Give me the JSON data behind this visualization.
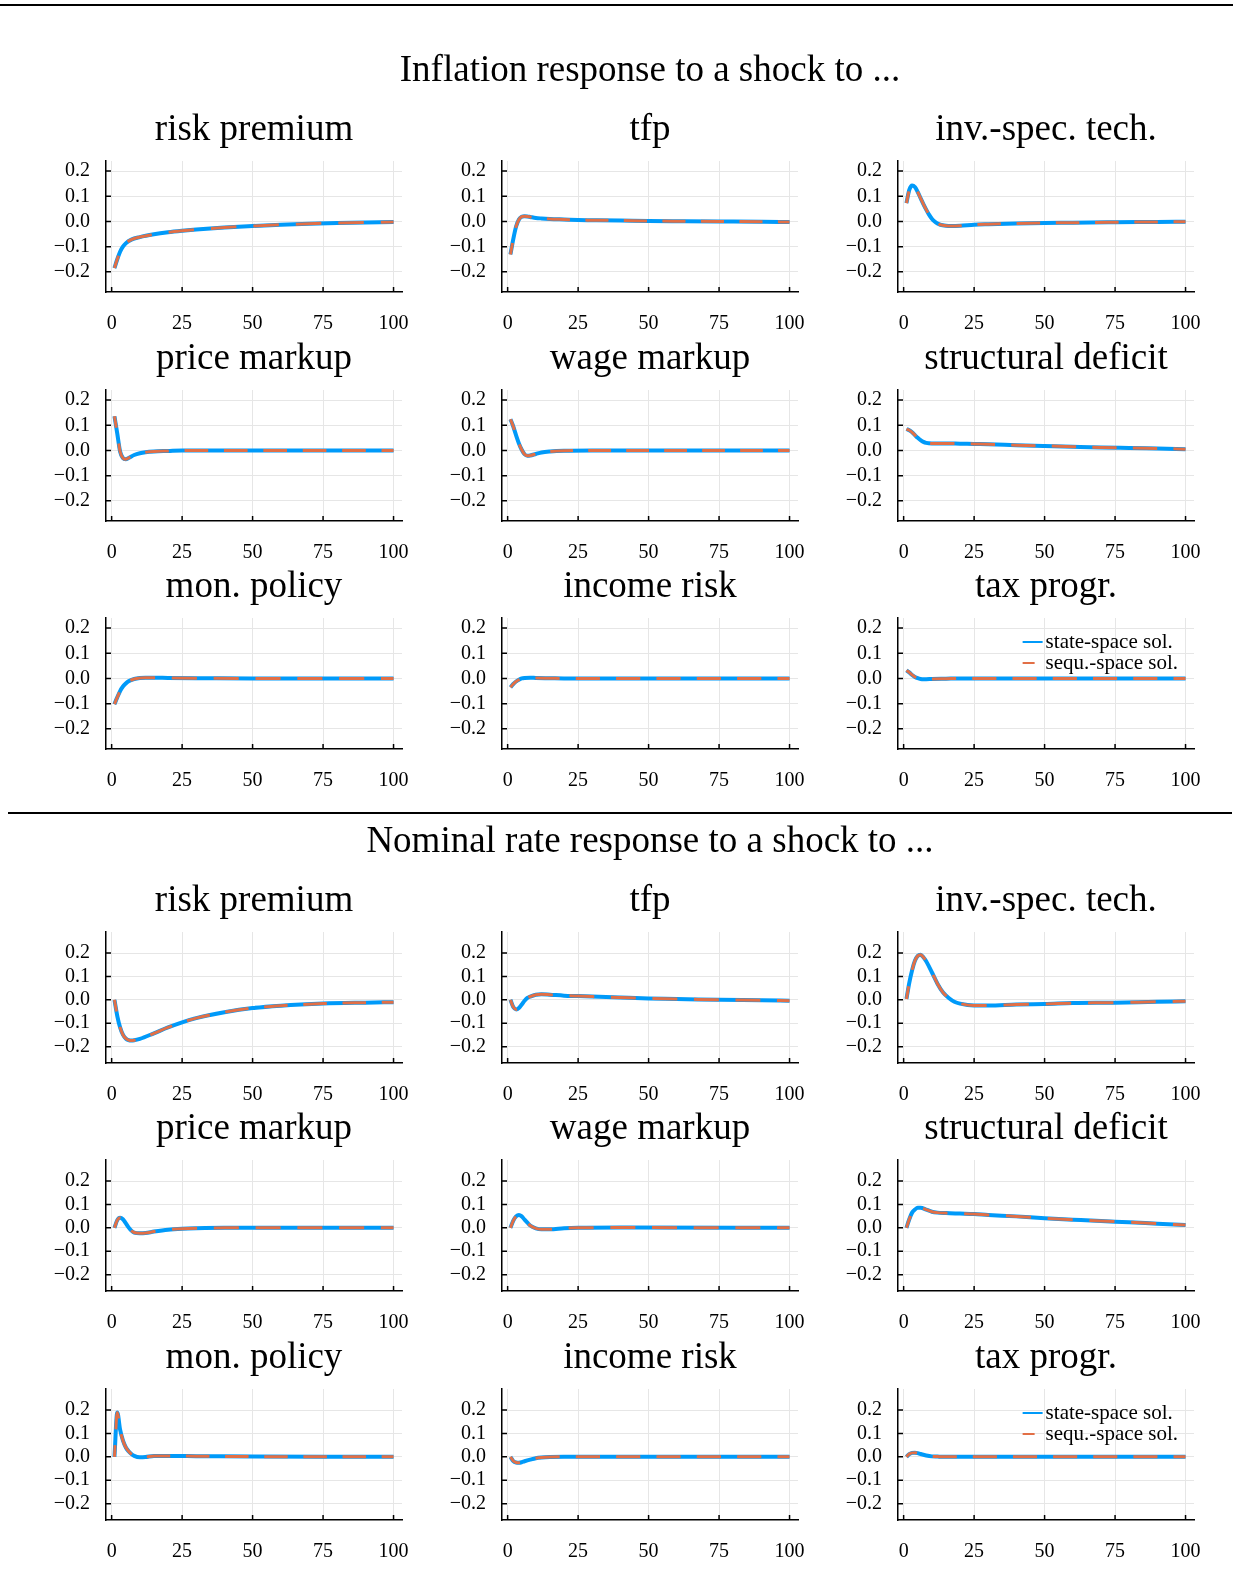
{
  "chart_data": [
    {
      "type": "other",
      "title": "Inflation response to a shock to ..."
    },
    {
      "type": "line",
      "title": "risk premium",
      "x": [
        1,
        2,
        3,
        4,
        5,
        7,
        10,
        15,
        20,
        25,
        30,
        40,
        50,
        60,
        70,
        80,
        90,
        100
      ],
      "series": [
        {
          "color": "#009af9",
          "line_style": "solid",
          "values": [
            -0.185,
            -0.15,
            -0.12,
            -0.1,
            -0.087,
            -0.072,
            -0.062,
            -0.051,
            -0.043,
            -0.037,
            -0.032,
            -0.024,
            -0.018,
            -0.013,
            -0.009,
            -0.006,
            -0.004,
            -0.002
          ]
        },
        {
          "color": "#e26f46",
          "line_style": "dashed",
          "values": [
            -0.185,
            -0.15,
            -0.12,
            -0.1,
            -0.087,
            -0.072,
            -0.062,
            -0.051,
            -0.043,
            -0.037,
            -0.032,
            -0.024,
            -0.018,
            -0.013,
            -0.009,
            -0.006,
            -0.004,
            -0.002
          ]
        }
      ],
      "xlim": [
        -2,
        103
      ],
      "xticks": [
        0,
        25,
        50,
        75,
        100
      ],
      "ylim": [
        -0.28,
        0.24
      ],
      "yticks": [
        {
          "value": -0.2,
          "label": "−0.2"
        },
        {
          "value": -0.1,
          "label": "−0.1"
        },
        {
          "value": 0,
          "label": "0.0"
        },
        {
          "value": 0.1,
          "label": "0.1"
        },
        {
          "value": 0.2,
          "label": "0.2"
        }
      ],
      "grid": true
    },
    {
      "type": "line",
      "title": "tfp",
      "x": [
        1,
        2,
        3,
        4,
        5,
        6,
        7,
        8,
        10,
        12,
        15,
        20,
        25,
        30,
        40,
        50,
        60,
        75,
        90,
        100
      ],
      "series": [
        {
          "color": "#009af9",
          "line_style": "solid",
          "values": [
            -0.131,
            -0.07,
            -0.02,
            0.008,
            0.019,
            0.021,
            0.02,
            0.018,
            0.014,
            0.012,
            0.01,
            0.008,
            0.006,
            0.005,
            0.004,
            0.002,
            0.001,
            0,
            -0.001,
            -0.002
          ]
        },
        {
          "color": "#e26f46",
          "line_style": "dashed",
          "values": [
            -0.131,
            -0.07,
            -0.02,
            0.008,
            0.019,
            0.021,
            0.02,
            0.018,
            0.014,
            0.012,
            0.01,
            0.008,
            0.006,
            0.005,
            0.004,
            0.002,
            0.001,
            0,
            -0.001,
            -0.002
          ]
        }
      ],
      "xlim": [
        -2,
        103
      ],
      "xticks": [
        0,
        25,
        50,
        75,
        100
      ],
      "ylim": [
        -0.28,
        0.24
      ],
      "yticks": [
        {
          "value": -0.2,
          "label": "−0.2"
        },
        {
          "value": -0.1,
          "label": "−0.1"
        },
        {
          "value": 0,
          "label": "0.0"
        },
        {
          "value": 0.1,
          "label": "0.1"
        },
        {
          "value": 0.2,
          "label": "0.2"
        }
      ],
      "grid": true
    },
    {
      "type": "line",
      "title": "inv.-spec. tech.",
      "x": [
        1,
        2,
        3,
        4,
        5,
        6,
        7,
        8,
        9,
        10,
        11,
        12,
        13,
        15,
        17,
        20,
        25,
        30,
        40,
        50,
        60,
        75,
        90,
        100
      ],
      "series": [
        {
          "color": "#009af9",
          "line_style": "solid",
          "values": [
            0.073,
            0.125,
            0.143,
            0.137,
            0.117,
            0.093,
            0.069,
            0.047,
            0.027,
            0.011,
            0,
            -0.008,
            -0.013,
            -0.017,
            -0.018,
            -0.017,
            -0.013,
            -0.011,
            -0.008,
            -0.006,
            -0.005,
            -0.003,
            -0.002,
            -0.001
          ]
        },
        {
          "color": "#e26f46",
          "line_style": "dashed",
          "values": [
            0.073,
            0.125,
            0.143,
            0.137,
            0.117,
            0.093,
            0.069,
            0.047,
            0.027,
            0.011,
            0,
            -0.008,
            -0.013,
            -0.017,
            -0.018,
            -0.017,
            -0.013,
            -0.011,
            -0.008,
            -0.006,
            -0.005,
            -0.003,
            -0.002,
            -0.001
          ]
        }
      ],
      "xlim": [
        -2,
        103
      ],
      "xticks": [
        0,
        25,
        50,
        75,
        100
      ],
      "ylim": [
        -0.28,
        0.24
      ],
      "yticks": [
        {
          "value": -0.2,
          "label": "−0.2"
        },
        {
          "value": -0.1,
          "label": "−0.1"
        },
        {
          "value": 0,
          "label": "0.0"
        },
        {
          "value": 0.1,
          "label": "0.1"
        },
        {
          "value": 0.2,
          "label": "0.2"
        }
      ],
      "grid": true
    },
    {
      "type": "line",
      "title": "price markup",
      "x": [
        1,
        2,
        3,
        4,
        5,
        6,
        8,
        10,
        12,
        15,
        20,
        25,
        50,
        75,
        100
      ],
      "series": [
        {
          "color": "#009af9",
          "line_style": "solid",
          "values": [
            0.136,
            0.067,
            -0.004,
            -0.03,
            -0.035,
            -0.03,
            -0.018,
            -0.011,
            -0.007,
            -0.004,
            -0.002,
            0,
            0,
            0,
            0
          ]
        },
        {
          "color": "#e26f46",
          "line_style": "dashed",
          "values": [
            0.136,
            0.067,
            -0.004,
            -0.03,
            -0.035,
            -0.03,
            -0.018,
            -0.011,
            -0.007,
            -0.004,
            -0.002,
            0,
            0,
            0,
            0
          ]
        }
      ],
      "xlim": [
        -2,
        103
      ],
      "xticks": [
        0,
        25,
        50,
        75,
        100
      ],
      "ylim": [
        -0.28,
        0.24
      ],
      "yticks": [
        {
          "value": -0.2,
          "label": "−0.2"
        },
        {
          "value": -0.1,
          "label": "−0.1"
        },
        {
          "value": 0,
          "label": "0.0"
        },
        {
          "value": 0.1,
          "label": "0.1"
        },
        {
          "value": 0.2,
          "label": "0.2"
        }
      ],
      "grid": true
    },
    {
      "type": "line",
      "title": "wage markup",
      "x": [
        1,
        2,
        3,
        4,
        5,
        6,
        7,
        8,
        10,
        12,
        15,
        20,
        30,
        50,
        75,
        100
      ],
      "series": [
        {
          "color": "#009af9",
          "line_style": "solid",
          "values": [
            0.124,
            0.095,
            0.06,
            0.028,
            0.003,
            -0.015,
            -0.021,
            -0.02,
            -0.014,
            -0.008,
            -0.004,
            -0.001,
            0,
            0,
            0,
            0
          ]
        },
        {
          "color": "#e26f46",
          "line_style": "dashed",
          "values": [
            0.124,
            0.095,
            0.06,
            0.028,
            0.003,
            -0.015,
            -0.021,
            -0.02,
            -0.014,
            -0.008,
            -0.004,
            -0.001,
            0,
            0,
            0,
            0
          ]
        }
      ],
      "xlim": [
        -2,
        103
      ],
      "xticks": [
        0,
        25,
        50,
        75,
        100
      ],
      "ylim": [
        -0.28,
        0.24
      ],
      "yticks": [
        {
          "value": -0.2,
          "label": "−0.2"
        },
        {
          "value": -0.1,
          "label": "−0.1"
        },
        {
          "value": 0,
          "label": "0.0"
        },
        {
          "value": 0.1,
          "label": "0.1"
        },
        {
          "value": 0.2,
          "label": "0.2"
        }
      ],
      "grid": true
    },
    {
      "type": "line",
      "title": "structural deficit",
      "x": [
        1,
        2,
        3,
        4,
        5,
        6,
        7,
        8,
        10,
        15,
        20,
        25,
        30,
        40,
        50,
        60,
        70,
        80,
        90,
        100
      ],
      "series": [
        {
          "color": "#009af9",
          "line_style": "solid",
          "values": [
            0.085,
            0.08,
            0.072,
            0.061,
            0.05,
            0.041,
            0.034,
            0.03,
            0.028,
            0.028,
            0.027,
            0.026,
            0.025,
            0.021,
            0.018,
            0.015,
            0.012,
            0.01,
            0.008,
            0.005
          ]
        },
        {
          "color": "#e26f46",
          "line_style": "dashed",
          "values": [
            0.085,
            0.08,
            0.072,
            0.061,
            0.05,
            0.041,
            0.034,
            0.03,
            0.028,
            0.028,
            0.027,
            0.026,
            0.025,
            0.021,
            0.018,
            0.015,
            0.012,
            0.01,
            0.008,
            0.005
          ]
        }
      ],
      "xlim": [
        -2,
        103
      ],
      "xticks": [
        0,
        25,
        50,
        75,
        100
      ],
      "ylim": [
        -0.28,
        0.24
      ],
      "yticks": [
        {
          "value": -0.2,
          "label": "−0.2"
        },
        {
          "value": -0.1,
          "label": "−0.1"
        },
        {
          "value": 0,
          "label": "0.0"
        },
        {
          "value": 0.1,
          "label": "0.1"
        },
        {
          "value": 0.2,
          "label": "0.2"
        }
      ],
      "grid": true
    },
    {
      "type": "line",
      "title": "mon. policy",
      "x": [
        1,
        2,
        3,
        4,
        5,
        6,
        8,
        10,
        12,
        15,
        20,
        30,
        50,
        75,
        100
      ],
      "series": [
        {
          "color": "#009af9",
          "line_style": "solid",
          "values": [
            -0.102,
            -0.075,
            -0.05,
            -0.032,
            -0.02,
            -0.011,
            -0.002,
            0.002,
            0.003,
            0.003,
            0.002,
            0.001,
            0,
            0,
            0
          ]
        },
        {
          "color": "#e26f46",
          "line_style": "dashed",
          "values": [
            -0.102,
            -0.075,
            -0.05,
            -0.032,
            -0.02,
            -0.011,
            -0.002,
            0.002,
            0.003,
            0.003,
            0.002,
            0.001,
            0,
            0,
            0
          ]
        }
      ],
      "xlim": [
        -2,
        103
      ],
      "xticks": [
        0,
        25,
        50,
        75,
        100
      ],
      "ylim": [
        -0.28,
        0.24
      ],
      "yticks": [
        {
          "value": -0.2,
          "label": "−0.2"
        },
        {
          "value": -0.1,
          "label": "−0.1"
        },
        {
          "value": 0,
          "label": "0.0"
        },
        {
          "value": 0.1,
          "label": "0.1"
        },
        {
          "value": 0.2,
          "label": "0.2"
        }
      ],
      "grid": true
    },
    {
      "type": "line",
      "title": "income risk",
      "x": [
        1,
        2,
        3,
        4,
        5,
        6,
        8,
        10,
        15,
        20,
        50,
        75,
        100
      ],
      "series": [
        {
          "color": "#009af9",
          "line_style": "solid",
          "values": [
            -0.035,
            -0.022,
            -0.012,
            -0.005,
            0,
            0.002,
            0.003,
            0.002,
            0.001,
            0,
            0,
            0,
            0
          ]
        },
        {
          "color": "#e26f46",
          "line_style": "dashed",
          "values": [
            -0.035,
            -0.022,
            -0.012,
            -0.005,
            0,
            0.002,
            0.003,
            0.002,
            0.001,
            0,
            0,
            0,
            0
          ]
        }
      ],
      "xlim": [
        -2,
        103
      ],
      "xticks": [
        0,
        25,
        50,
        75,
        100
      ],
      "ylim": [
        -0.28,
        0.24
      ],
      "yticks": [
        {
          "value": -0.2,
          "label": "−0.2"
        },
        {
          "value": -0.1,
          "label": "−0.1"
        },
        {
          "value": 0,
          "label": "0.0"
        },
        {
          "value": 0.1,
          "label": "0.1"
        },
        {
          "value": 0.2,
          "label": "0.2"
        }
      ],
      "grid": true
    },
    {
      "type": "line",
      "title": "tax progr.",
      "x": [
        1,
        2,
        3,
        4,
        5,
        6,
        7,
        8,
        10,
        15,
        20,
        50,
        75,
        100
      ],
      "series": [
        {
          "name": "state-space sol.",
          "color": "#009af9",
          "line_style": "solid",
          "values": [
            0.032,
            0.024,
            0.014,
            0.006,
            0.001,
            -0.002,
            -0.003,
            -0.003,
            -0.002,
            -0.001,
            0,
            0,
            0,
            0
          ]
        },
        {
          "name": "sequ.-space sol.",
          "color": "#e26f46",
          "line_style": "dashed",
          "values": [
            0.032,
            0.024,
            0.014,
            0.006,
            0.001,
            -0.002,
            -0.003,
            -0.003,
            -0.002,
            -0.001,
            0,
            0,
            0,
            0
          ]
        }
      ],
      "xlim": [
        -2,
        103
      ],
      "xticks": [
        0,
        25,
        50,
        75,
        100
      ],
      "ylim": [
        -0.28,
        0.24
      ],
      "yticks": [
        {
          "value": -0.2,
          "label": "−0.2"
        },
        {
          "value": -0.1,
          "label": "−0.1"
        },
        {
          "value": 0,
          "label": "0.0"
        },
        {
          "value": 0.1,
          "label": "0.1"
        },
        {
          "value": 0.2,
          "label": "0.2"
        }
      ],
      "grid": true,
      "legend": "top right"
    },
    {
      "type": "other",
      "title": "Nominal rate response to a shock to ..."
    },
    {
      "type": "line",
      "title": "risk premium",
      "x": [
        1,
        2,
        3,
        4,
        5,
        6,
        7,
        8,
        10,
        15,
        20,
        25,
        30,
        40,
        50,
        60,
        75,
        90,
        100
      ],
      "series": [
        {
          "color": "#009af9",
          "line_style": "solid",
          "values": [
            0,
            -0.069,
            -0.118,
            -0.149,
            -0.165,
            -0.172,
            -0.174,
            -0.173,
            -0.167,
            -0.143,
            -0.118,
            -0.096,
            -0.078,
            -0.053,
            -0.035,
            -0.025,
            -0.016,
            -0.012,
            -0.01
          ]
        },
        {
          "color": "#e26f46",
          "line_style": "dashed",
          "values": [
            0,
            -0.069,
            -0.118,
            -0.149,
            -0.165,
            -0.172,
            -0.174,
            -0.173,
            -0.167,
            -0.143,
            -0.118,
            -0.096,
            -0.078,
            -0.053,
            -0.035,
            -0.025,
            -0.016,
            -0.012,
            -0.01
          ]
        }
      ],
      "xlim": [
        -2,
        103
      ],
      "xticks": [
        0,
        25,
        50,
        75,
        100
      ],
      "ylim": [
        -0.27,
        0.29
      ],
      "yticks": [
        {
          "value": -0.2,
          "label": "−0.2"
        },
        {
          "value": -0.1,
          "label": "−0.1"
        },
        {
          "value": 0,
          "label": "0.0"
        },
        {
          "value": 0.1,
          "label": "0.1"
        },
        {
          "value": 0.2,
          "label": "0.2"
        }
      ],
      "grid": true
    },
    {
      "type": "line",
      "title": "tfp",
      "x": [
        1,
        2,
        3,
        4,
        5,
        6,
        7,
        8,
        10,
        12,
        15,
        20,
        25,
        30,
        40,
        50,
        60,
        75,
        90,
        100
      ],
      "series": [
        {
          "color": "#009af9",
          "line_style": "solid",
          "values": [
            0,
            -0.031,
            -0.041,
            -0.035,
            -0.02,
            -0.004,
            0.008,
            0.014,
            0.022,
            0.024,
            0.022,
            0.018,
            0.016,
            0.014,
            0.01,
            0.006,
            0.004,
            0,
            -0.002,
            -0.004
          ]
        },
        {
          "color": "#e26f46",
          "line_style": "dashed",
          "values": [
            0,
            -0.031,
            -0.041,
            -0.035,
            -0.02,
            -0.004,
            0.008,
            0.014,
            0.022,
            0.024,
            0.022,
            0.018,
            0.016,
            0.014,
            0.01,
            0.006,
            0.004,
            0,
            -0.002,
            -0.004
          ]
        }
      ],
      "xlim": [
        -2,
        103
      ],
      "xticks": [
        0,
        25,
        50,
        75,
        100
      ],
      "ylim": [
        -0.27,
        0.29
      ],
      "yticks": [
        {
          "value": -0.2,
          "label": "−0.2"
        },
        {
          "value": -0.1,
          "label": "−0.1"
        },
        {
          "value": 0,
          "label": "0.0"
        },
        {
          "value": 0.1,
          "label": "0.1"
        },
        {
          "value": 0.2,
          "label": "0.2"
        }
      ],
      "grid": true
    },
    {
      "type": "line",
      "title": "inv.-spec. tech.",
      "x": [
        1,
        2,
        3,
        4,
        5,
        6,
        7,
        8,
        10,
        12,
        14,
        16,
        18,
        20,
        25,
        30,
        40,
        50,
        60,
        75,
        90,
        100
      ],
      "series": [
        {
          "color": "#009af9",
          "line_style": "solid",
          "values": [
            0.004,
            0.073,
            0.127,
            0.167,
            0.188,
            0.193,
            0.182,
            0.165,
            0.118,
            0.069,
            0.031,
            0.008,
            -0.008,
            -0.016,
            -0.024,
            -0.024,
            -0.02,
            -0.018,
            -0.014,
            -0.012,
            -0.008,
            -0.006
          ]
        },
        {
          "color": "#e26f46",
          "line_style": "dashed",
          "values": [
            0.004,
            0.073,
            0.127,
            0.167,
            0.188,
            0.193,
            0.182,
            0.165,
            0.118,
            0.069,
            0.031,
            0.008,
            -0.008,
            -0.016,
            -0.024,
            -0.024,
            -0.02,
            -0.018,
            -0.014,
            -0.012,
            -0.008,
            -0.006
          ]
        }
      ],
      "xlim": [
        -2,
        103
      ],
      "xticks": [
        0,
        25,
        50,
        75,
        100
      ],
      "ylim": [
        -0.27,
        0.29
      ],
      "yticks": [
        {
          "value": -0.2,
          "label": "−0.2"
        },
        {
          "value": -0.1,
          "label": "−0.1"
        },
        {
          "value": 0,
          "label": "0.0"
        },
        {
          "value": 0.1,
          "label": "0.1"
        },
        {
          "value": 0.2,
          "label": "0.2"
        }
      ],
      "grid": true
    },
    {
      "type": "line",
      "title": "price markup",
      "x": [
        1,
        2,
        3,
        4,
        5,
        6,
        7,
        8,
        10,
        12,
        15,
        20,
        25,
        30,
        40,
        100
      ],
      "series": [
        {
          "color": "#009af9",
          "line_style": "solid",
          "values": [
            0,
            0.033,
            0.043,
            0.037,
            0.02,
            0.002,
            -0.012,
            -0.02,
            -0.023,
            -0.022,
            -0.016,
            -0.008,
            -0.004,
            -0.002,
            0,
            0
          ]
        },
        {
          "color": "#e26f46",
          "line_style": "dashed",
          "values": [
            0,
            0.033,
            0.043,
            0.037,
            0.02,
            0.002,
            -0.012,
            -0.02,
            -0.023,
            -0.022,
            -0.016,
            -0.008,
            -0.004,
            -0.002,
            0,
            0
          ]
        }
      ],
      "xlim": [
        -2,
        103
      ],
      "xticks": [
        0,
        25,
        50,
        75,
        100
      ],
      "ylim": [
        -0.27,
        0.29
      ],
      "yticks": [
        {
          "value": -0.2,
          "label": "−0.2"
        },
        {
          "value": -0.1,
          "label": "−0.1"
        },
        {
          "value": 0,
          "label": "0.0"
        },
        {
          "value": 0.1,
          "label": "0.1"
        },
        {
          "value": 0.2,
          "label": "0.2"
        }
      ],
      "grid": true
    },
    {
      "type": "line",
      "title": "wage markup",
      "x": [
        1,
        2,
        3,
        4,
        5,
        6,
        7,
        8,
        10,
        12,
        15,
        20,
        25,
        40,
        100
      ],
      "series": [
        {
          "color": "#009af9",
          "line_style": "solid",
          "values": [
            0,
            0.031,
            0.049,
            0.055,
            0.049,
            0.035,
            0.022,
            0.01,
            -0.002,
            -0.006,
            -0.006,
            -0.002,
            0,
            0.001,
            0
          ]
        },
        {
          "color": "#e26f46",
          "line_style": "dashed",
          "values": [
            0,
            0.031,
            0.049,
            0.055,
            0.049,
            0.035,
            0.022,
            0.01,
            -0.002,
            -0.006,
            -0.006,
            -0.002,
            0,
            0.001,
            0
          ]
        }
      ],
      "xlim": [
        -2,
        103
      ],
      "xticks": [
        0,
        25,
        50,
        75,
        100
      ],
      "ylim": [
        -0.27,
        0.29
      ],
      "yticks": [
        {
          "value": -0.2,
          "label": "−0.2"
        },
        {
          "value": -0.1,
          "label": "−0.1"
        },
        {
          "value": 0,
          "label": "0.0"
        },
        {
          "value": 0.1,
          "label": "0.1"
        },
        {
          "value": 0.2,
          "label": "0.2"
        }
      ],
      "grid": true
    },
    {
      "type": "line",
      "title": "structural deficit",
      "x": [
        1,
        2,
        3,
        4,
        5,
        6,
        8,
        10,
        12,
        15,
        20,
        25,
        30,
        40,
        50,
        60,
        70,
        80,
        90,
        100
      ],
      "series": [
        {
          "color": "#009af9",
          "line_style": "solid",
          "values": [
            0,
            0.037,
            0.065,
            0.078,
            0.086,
            0.086,
            0.078,
            0.069,
            0.065,
            0.063,
            0.061,
            0.059,
            0.055,
            0.049,
            0.041,
            0.035,
            0.029,
            0.024,
            0.018,
            0.012
          ]
        },
        {
          "color": "#e26f46",
          "line_style": "dashed",
          "values": [
            0,
            0.037,
            0.065,
            0.078,
            0.086,
            0.086,
            0.078,
            0.069,
            0.065,
            0.063,
            0.061,
            0.059,
            0.055,
            0.049,
            0.041,
            0.035,
            0.029,
            0.024,
            0.018,
            0.012
          ]
        }
      ],
      "xlim": [
        -2,
        103
      ],
      "xticks": [
        0,
        25,
        50,
        75,
        100
      ],
      "ylim": [
        -0.27,
        0.29
      ],
      "yticks": [
        {
          "value": -0.2,
          "label": "−0.2"
        },
        {
          "value": -0.1,
          "label": "−0.1"
        },
        {
          "value": 0,
          "label": "0.0"
        },
        {
          "value": 0.1,
          "label": "0.1"
        },
        {
          "value": 0.2,
          "label": "0.2"
        }
      ],
      "grid": true
    },
    {
      "type": "line",
      "title": "mon. policy",
      "x": [
        1,
        2,
        3,
        4,
        5,
        6,
        7,
        8,
        10,
        12,
        15,
        20,
        30,
        50,
        75,
        100
      ],
      "series": [
        {
          "color": "#009af9",
          "line_style": "solid",
          "values": [
            0,
            0.19,
            0.116,
            0.07,
            0.041,
            0.024,
            0.012,
            0.004,
            -0.002,
            -0.001,
            0.004,
            0.004,
            0.003,
            0.001,
            0,
            0
          ]
        },
        {
          "color": "#e26f46",
          "line_style": "dashed",
          "values": [
            0,
            0.19,
            0.116,
            0.07,
            0.041,
            0.024,
            0.012,
            0.004,
            -0.002,
            -0.001,
            0.004,
            0.004,
            0.003,
            0.001,
            0,
            0
          ]
        }
      ],
      "xlim": [
        -2,
        103
      ],
      "xticks": [
        0,
        25,
        50,
        75,
        100
      ],
      "ylim": [
        -0.27,
        0.29
      ],
      "yticks": [
        {
          "value": -0.2,
          "label": "−0.2"
        },
        {
          "value": -0.1,
          "label": "−0.1"
        },
        {
          "value": 0,
          "label": "0.0"
        },
        {
          "value": 0.1,
          "label": "0.1"
        },
        {
          "value": 0.2,
          "label": "0.2"
        }
      ],
      "grid": true
    },
    {
      "type": "line",
      "title": "income risk",
      "x": [
        1,
        2,
        3,
        4,
        5,
        6,
        8,
        10,
        12,
        15,
        20,
        50,
        100
      ],
      "series": [
        {
          "color": "#009af9",
          "line_style": "solid",
          "values": [
            0,
            -0.018,
            -0.024,
            -0.025,
            -0.023,
            -0.019,
            -0.012,
            -0.006,
            -0.003,
            -0.001,
            0,
            0,
            0
          ]
        },
        {
          "color": "#e26f46",
          "line_style": "dashed",
          "values": [
            0,
            -0.018,
            -0.024,
            -0.025,
            -0.023,
            -0.019,
            -0.012,
            -0.006,
            -0.003,
            -0.001,
            0,
            0,
            0
          ]
        }
      ],
      "xlim": [
        -2,
        103
      ],
      "xticks": [
        0,
        25,
        50,
        75,
        100
      ],
      "ylim": [
        -0.27,
        0.29
      ],
      "yticks": [
        {
          "value": -0.2,
          "label": "−0.2"
        },
        {
          "value": -0.1,
          "label": "−0.1"
        },
        {
          "value": 0,
          "label": "0.0"
        },
        {
          "value": 0.1,
          "label": "0.1"
        },
        {
          "value": 0.2,
          "label": "0.2"
        }
      ],
      "grid": true
    },
    {
      "type": "line",
      "title": "tax progr.",
      "x": [
        1,
        2,
        3,
        4,
        5,
        6,
        8,
        10,
        12,
        15,
        50,
        100
      ],
      "series": [
        {
          "name": "state-space sol.",
          "color": "#009af9",
          "line_style": "solid",
          "values": [
            0,
            0.012,
            0.017,
            0.018,
            0.016,
            0.012,
            0.006,
            0.002,
            0.001,
            0,
            0,
            0
          ]
        },
        {
          "name": "sequ.-space sol.",
          "color": "#e26f46",
          "line_style": "dashed",
          "values": [
            0,
            0.012,
            0.017,
            0.018,
            0.016,
            0.012,
            0.006,
            0.002,
            0.001,
            0,
            0,
            0
          ]
        }
      ],
      "xlim": [
        -2,
        103
      ],
      "xticks": [
        0,
        25,
        50,
        75,
        100
      ],
      "ylim": [
        -0.27,
        0.29
      ],
      "yticks": [
        {
          "value": -0.2,
          "label": "−0.2"
        },
        {
          "value": -0.1,
          "label": "−0.1"
        },
        {
          "value": 0,
          "label": "0.0"
        },
        {
          "value": 0.1,
          "label": "0.1"
        },
        {
          "value": 0.2,
          "label": "0.2"
        }
      ],
      "grid": true,
      "legend": "top right"
    }
  ]
}
